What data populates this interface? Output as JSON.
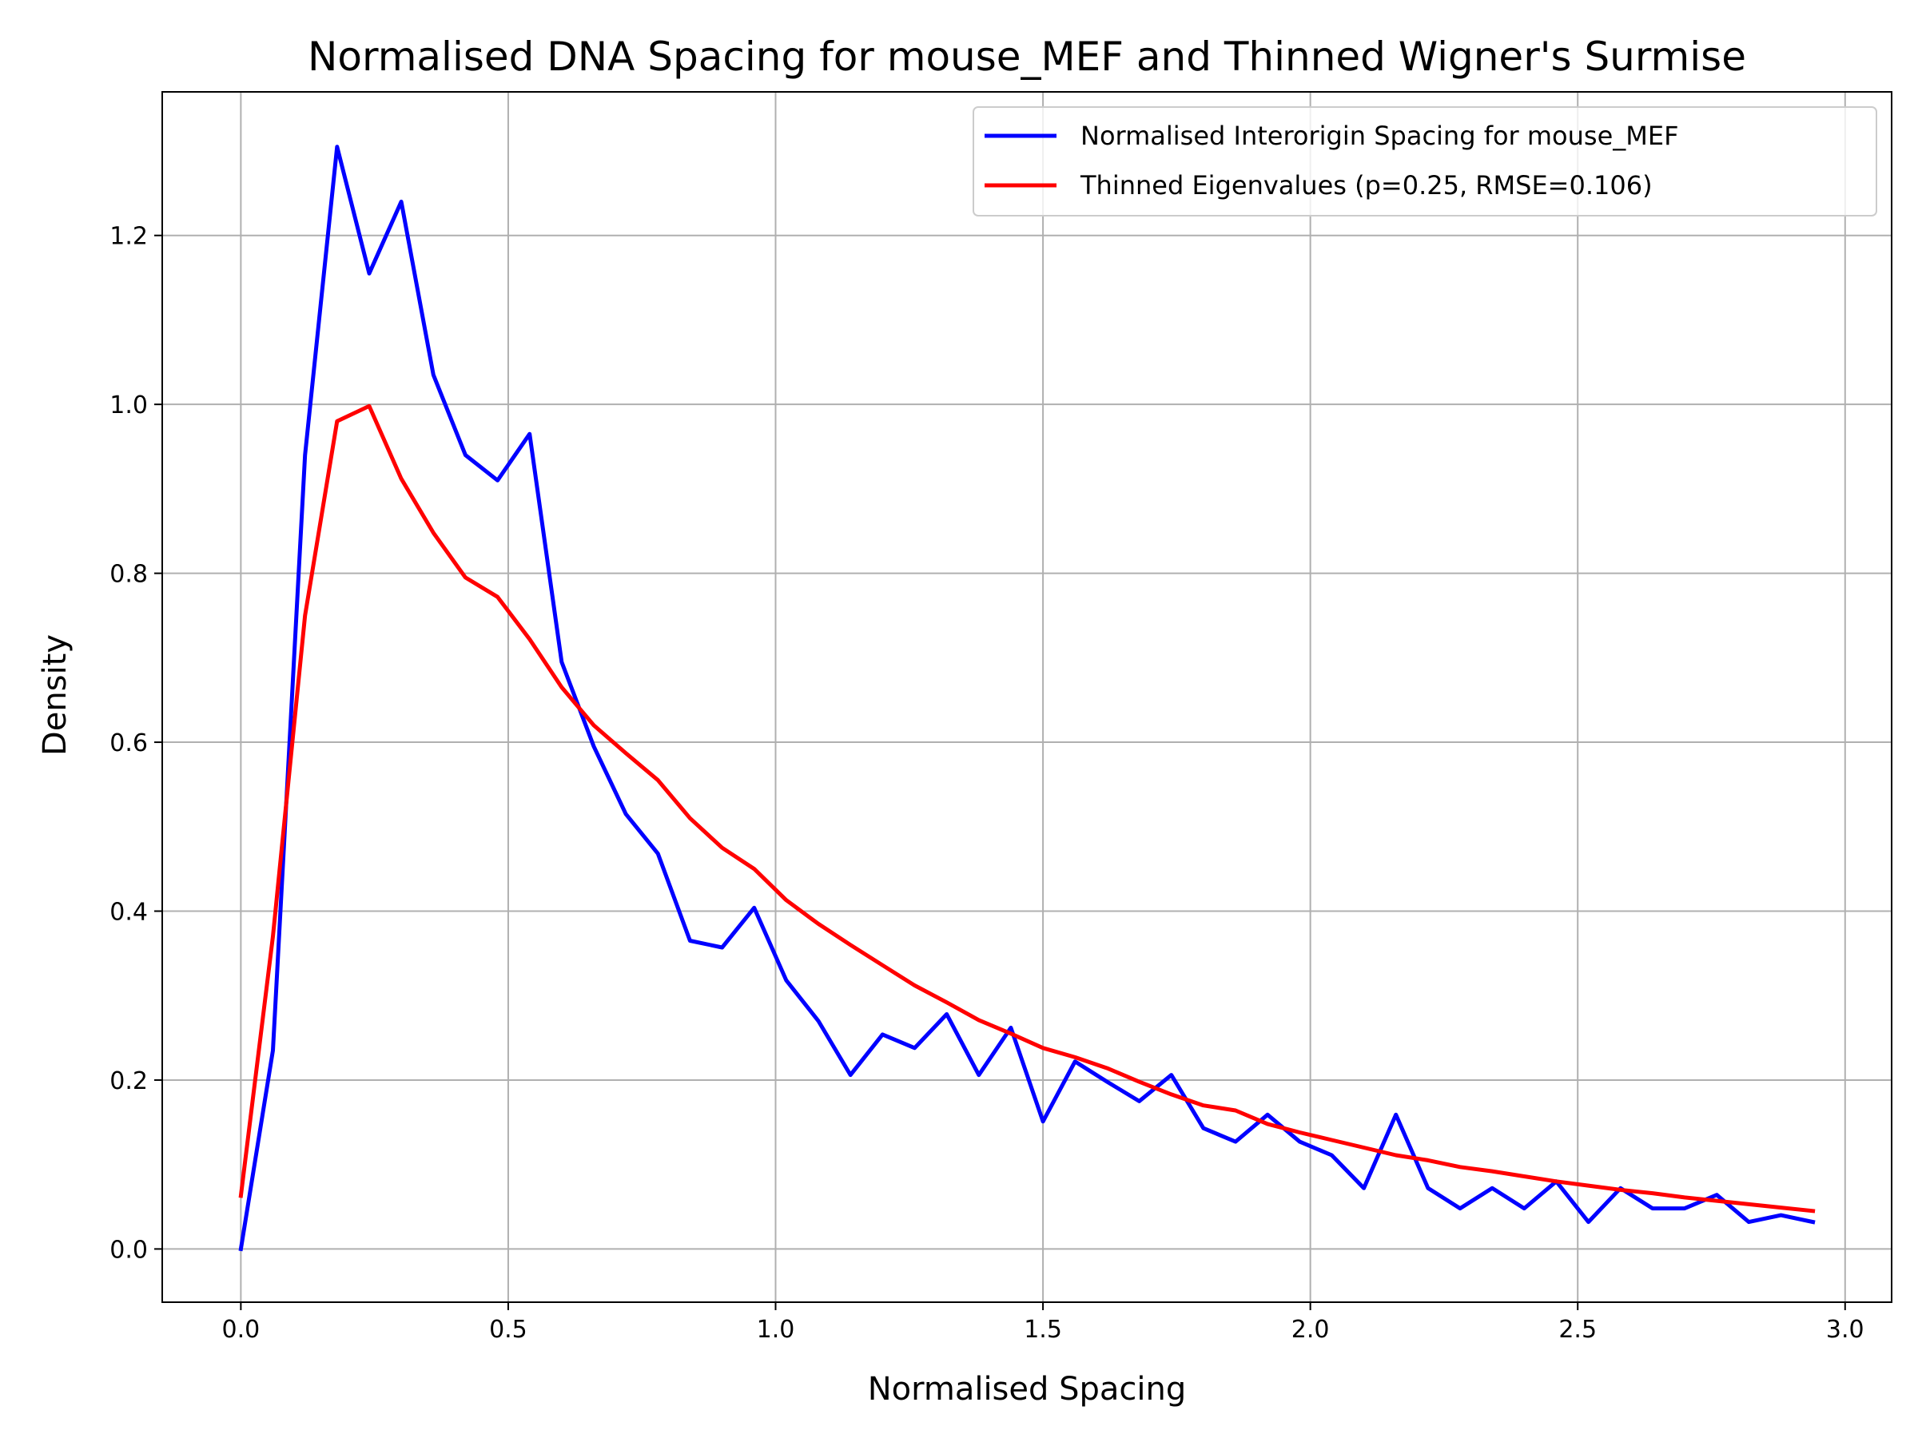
{
  "chart_data": {
    "type": "line",
    "title": "Normalised DNA Spacing for mouse_MEF and Thinned Wigner's Surmise",
    "xlabel": "Normalised Spacing",
    "ylabel": "Density",
    "xlim": [
      -0.147,
      3.087
    ],
    "ylim": [
      -0.063,
      1.37
    ],
    "xticks": [
      0.0,
      0.5,
      1.0,
      1.5,
      2.0,
      2.5,
      3.0
    ],
    "xtick_labels": [
      "0.0",
      "0.5",
      "1.0",
      "1.5",
      "2.0",
      "2.5",
      "3.0"
    ],
    "yticks": [
      0.0,
      0.2,
      0.4,
      0.6,
      0.8,
      1.0,
      1.2
    ],
    "ytick_labels": [
      "0.0",
      "0.2",
      "0.4",
      "0.6",
      "0.8",
      "1.0",
      "1.2"
    ],
    "grid": true,
    "legend_position": "top-right",
    "x": [
      0.0,
      0.06,
      0.12,
      0.18,
      0.24,
      0.3,
      0.36,
      0.42,
      0.48,
      0.54,
      0.6,
      0.66,
      0.72,
      0.78,
      0.84,
      0.9,
      0.96,
      1.02,
      1.08,
      1.14,
      1.2,
      1.26,
      1.32,
      1.38,
      1.44,
      1.5,
      1.56,
      1.62,
      1.68,
      1.74,
      1.8,
      1.86,
      1.92,
      1.98,
      2.04,
      2.1,
      2.16,
      2.22,
      2.28,
      2.34,
      2.4,
      2.46,
      2.52,
      2.58,
      2.64,
      2.7,
      2.76,
      2.82,
      2.88,
      2.94
    ],
    "series": [
      {
        "name": "Normalised Interorigin Spacing for mouse_MEF",
        "color": "#0000ff",
        "values": [
          0.0,
          0.235,
          0.94,
          1.305,
          1.155,
          1.24,
          1.035,
          0.94,
          0.91,
          0.965,
          0.695,
          0.595,
          0.515,
          0.468,
          0.365,
          0.357,
          0.404,
          0.318,
          0.27,
          0.206,
          0.254,
          0.238,
          0.278,
          0.206,
          0.262,
          0.151,
          0.222,
          0.198,
          0.175,
          0.206,
          0.143,
          0.127,
          0.159,
          0.127,
          0.111,
          0.072,
          0.159,
          0.072,
          0.048,
          0.072,
          0.048,
          0.08,
          0.032,
          0.072,
          0.048,
          0.048,
          0.064,
          0.032,
          0.04,
          0.032
        ]
      },
      {
        "name": "Thinned Eigenvalues (p=0.25, RMSE=0.106)",
        "color": "#ff0000",
        "values": [
          0.063,
          0.37,
          0.75,
          0.98,
          0.998,
          0.912,
          0.848,
          0.795,
          0.772,
          0.722,
          0.665,
          0.62,
          0.587,
          0.555,
          0.51,
          0.475,
          0.45,
          0.413,
          0.385,
          0.36,
          0.336,
          0.312,
          0.292,
          0.271,
          0.255,
          0.238,
          0.227,
          0.214,
          0.198,
          0.183,
          0.17,
          0.164,
          0.148,
          0.138,
          0.129,
          0.12,
          0.111,
          0.105,
          0.097,
          0.092,
          0.086,
          0.08,
          0.075,
          0.07,
          0.066,
          0.061,
          0.057,
          0.053,
          0.049,
          0.045
        ]
      }
    ]
  }
}
